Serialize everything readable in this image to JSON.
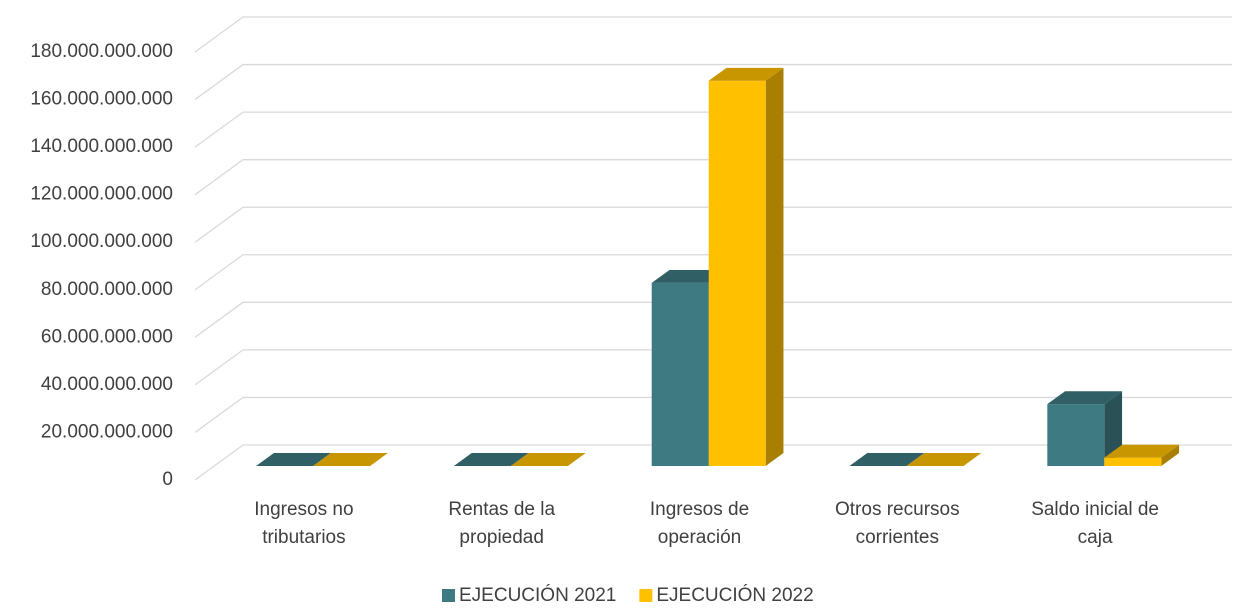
{
  "chart_data": {
    "type": "bar3d",
    "categories": [
      "Ingresos no tributarios",
      "Rentas de la propiedad",
      "Ingresos de operación",
      "Otros recursos corrientes",
      "Saldo inicial de caja"
    ],
    "series": [
      {
        "name": "EJECUCIÓN 2021",
        "color": "#3e7a82",
        "values": [
          0,
          0,
          77000000000,
          0,
          26000000000
        ]
      },
      {
        "name": "EJECUCIÓN 2022",
        "color": "#ffc000",
        "values": [
          0,
          0,
          162000000000,
          0,
          3500000000
        ]
      }
    ],
    "ylim": [
      0,
      180000000000
    ],
    "yticks": [
      0,
      {
        "value": 20000000000,
        "label": "20.000.000.000"
      },
      {
        "value": 40000000000,
        "label": "40.000.000.000"
      },
      {
        "value": 60000000000,
        "label": "60.000.000.000"
      },
      {
        "value": 80000000000,
        "label": "80.000.000.000"
      },
      {
        "value": 100000000000,
        "label": "100.000.000.000"
      },
      {
        "value": 120000000000,
        "label": "120.000.000.000"
      },
      {
        "value": 140000000000,
        "label": "140.000.000.000"
      },
      {
        "value": 160000000000,
        "label": "160.000.000.000"
      },
      {
        "value": 180000000000,
        "label": "180.000.000.000"
      }
    ],
    "grid": true,
    "legend": "bottom"
  }
}
